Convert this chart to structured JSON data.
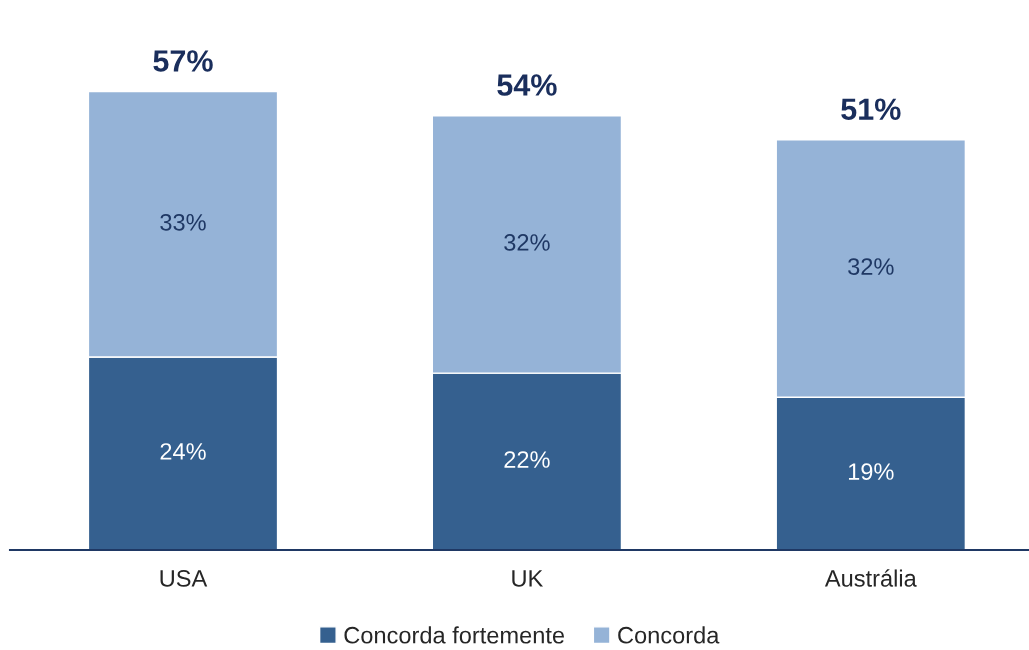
{
  "chart_data": {
    "type": "bar",
    "stacked": true,
    "categories": [
      "USA",
      "UK",
      "Austrália"
    ],
    "series": [
      {
        "name": "Concorda fortemente",
        "color": "#35608f",
        "values": [
          24,
          22,
          19
        ],
        "value_labels": [
          "24%",
          "22%",
          "19%"
        ]
      },
      {
        "name": "Concorda",
        "color": "#95b3d7",
        "values": [
          33,
          32,
          32
        ],
        "value_labels": [
          "33%",
          "32%",
          "32%"
        ]
      }
    ],
    "totals": [
      "57%",
      "54%",
      "51%"
    ],
    "legend": "bottom",
    "grid": false
  }
}
